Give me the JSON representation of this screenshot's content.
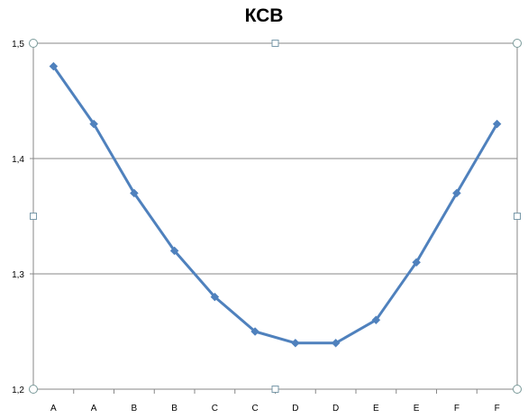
{
  "chart_data": {
    "type": "line",
    "title": "КСВ",
    "xlabel": "",
    "ylabel": "",
    "categories": [
      "A",
      "A",
      "B",
      "B",
      "C",
      "C",
      "D",
      "D",
      "E",
      "E",
      "F",
      "F"
    ],
    "series": [
      {
        "values": [
          1.48,
          1.43,
          1.37,
          1.32,
          1.28,
          1.25,
          1.24,
          1.24,
          1.26,
          1.31,
          1.37,
          1.43
        ],
        "color": "#4f81bd",
        "marker": "diamond"
      }
    ],
    "ylim": [
      1.2,
      1.5
    ],
    "yticks": [
      1.2,
      1.3,
      1.4,
      1.5
    ],
    "ytick_labels": [
      "1,2",
      "1,3",
      "1,4",
      "1,5"
    ],
    "grid": true,
    "legend": "none"
  }
}
